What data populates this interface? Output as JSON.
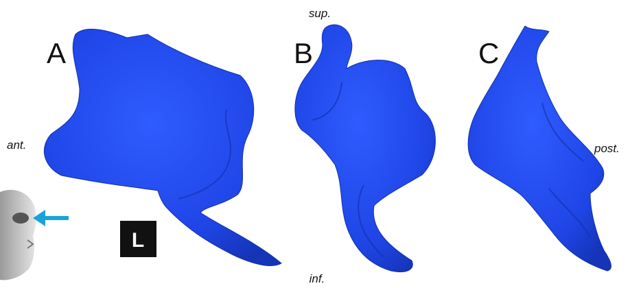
{
  "panels": [
    {
      "label": "A"
    },
    {
      "label": "B"
    },
    {
      "label": "C"
    }
  ],
  "orientation": {
    "superior": "sup.",
    "inferior": "inf.",
    "anterior": "ant.",
    "posterior": "post."
  },
  "side_marker": "L"
}
